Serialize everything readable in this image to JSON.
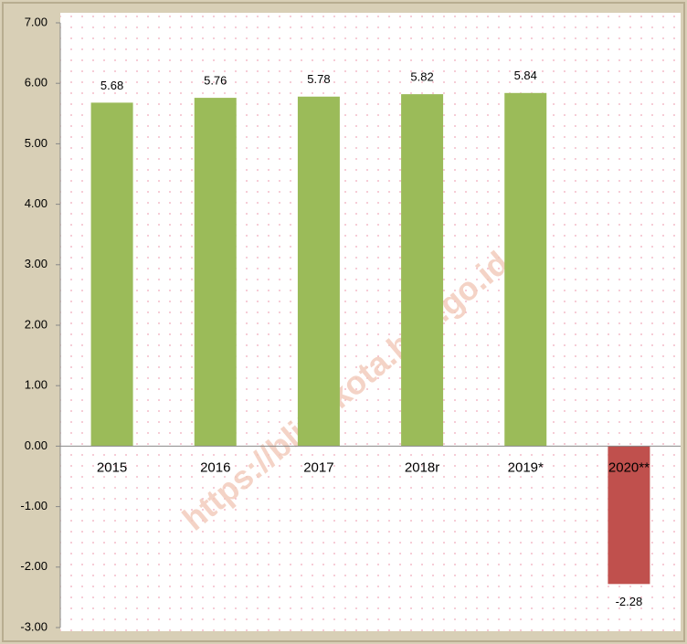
{
  "chart_data": {
    "type": "bar",
    "categories": [
      "2015",
      "2016",
      "2017",
      "2018r",
      "2019*",
      "2020**"
    ],
    "values": [
      5.68,
      5.76,
      5.78,
      5.82,
      5.84,
      -2.28
    ],
    "colors": [
      "#9bbb59",
      "#9bbb59",
      "#9bbb59",
      "#9bbb59",
      "#9bbb59",
      "#c0504d"
    ],
    "ylim": [
      -3,
      7
    ],
    "yticks": [
      {
        "value": -3,
        "label": "-3.00"
      },
      {
        "value": -2,
        "label": "-2.00"
      },
      {
        "value": -1,
        "label": "-1.00"
      },
      {
        "value": 0,
        "label": "0.00"
      },
      {
        "value": 1,
        "label": "1.00"
      },
      {
        "value": 2,
        "label": "2.00"
      },
      {
        "value": 3,
        "label": "3.00"
      },
      {
        "value": 4,
        "label": "4.00"
      },
      {
        "value": 5,
        "label": "5.00"
      },
      {
        "value": 6,
        "label": "6.00"
      },
      {
        "value": 7,
        "label": "7.00"
      }
    ],
    "annotation": "https://blitarkota.bps.go.id"
  }
}
